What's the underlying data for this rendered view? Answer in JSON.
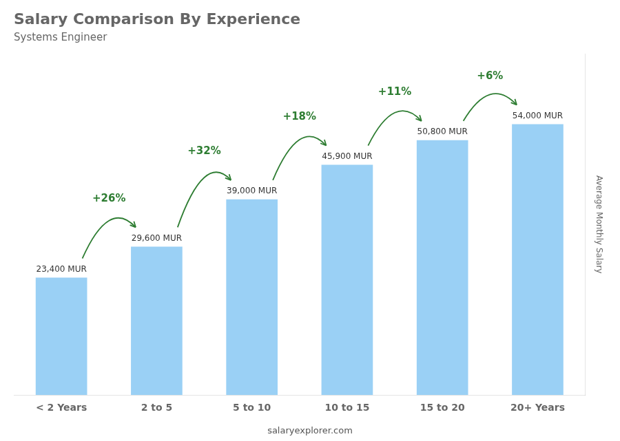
{
  "chart_data": {
    "type": "bar",
    "title": "Salary Comparison By Experience",
    "subtitle": "Systems Engineer",
    "y_label": "Average Monthly Salary",
    "footer": "salaryexplorer.com",
    "categories": [
      "< 2 Years",
      "2 to 5",
      "5 to 10",
      "10 to 15",
      "15 to 20",
      "20+ Years"
    ],
    "values": [
      23400,
      29600,
      39000,
      45900,
      50800,
      54000
    ],
    "value_labels": [
      "23,400 MUR",
      "29,600 MUR",
      "39,000 MUR",
      "45,900 MUR",
      "50,800 MUR",
      "54,000 MUR"
    ],
    "data_labels": true,
    "annotations": [
      "+26%",
      "+32%",
      "+18%",
      "+11%",
      "+6%"
    ],
    "ylim": [
      0,
      68000
    ],
    "grid": false,
    "tick_labels": "x"
  }
}
